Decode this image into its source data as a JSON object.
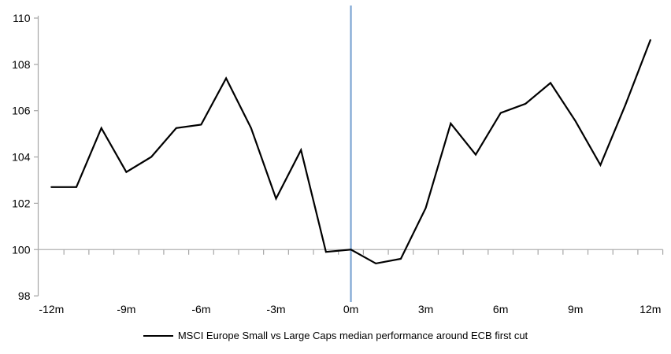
{
  "chart_data": {
    "type": "line",
    "categories": [
      "-12m",
      "-11m",
      "-10m",
      "-9m",
      "-8m",
      "-7m",
      "-6m",
      "-5m",
      "-4m",
      "-3m",
      "-2m",
      "-1m",
      "0m",
      "1m",
      "2m",
      "3m",
      "4m",
      "5m",
      "6m",
      "7m",
      "8m",
      "9m",
      "10m",
      "11m",
      "12m"
    ],
    "series": [
      {
        "name": "MSCI Europe Small vs Large Caps median performance around ECB first cut",
        "color": "#000000",
        "values": [
          102.7,
          102.7,
          105.25,
          103.35,
          104.0,
          105.25,
          105.4,
          107.4,
          105.25,
          102.2,
          104.3,
          99.9,
          100.0,
          99.4,
          99.6,
          101.8,
          105.45,
          104.1,
          105.9,
          106.3,
          107.2,
          105.55,
          103.65,
          106.25,
          109.05
        ]
      }
    ],
    "title": "",
    "xlabel": "",
    "ylabel": "",
    "ylim": [
      98,
      110
    ],
    "y_ticks": [
      98,
      100,
      102,
      104,
      106,
      108,
      110
    ],
    "x_label_interval": 3,
    "baseline_value": 100,
    "event_line": {
      "category": "0m",
      "color": "#7CA5D3"
    },
    "grid": "off",
    "legend_position": "bottom-center",
    "colors": {
      "series": "#000000",
      "axis": "#A6A6A6",
      "baseline": "#B0B0B0",
      "event_line": "#7CA5D3",
      "text": "#000000"
    }
  }
}
